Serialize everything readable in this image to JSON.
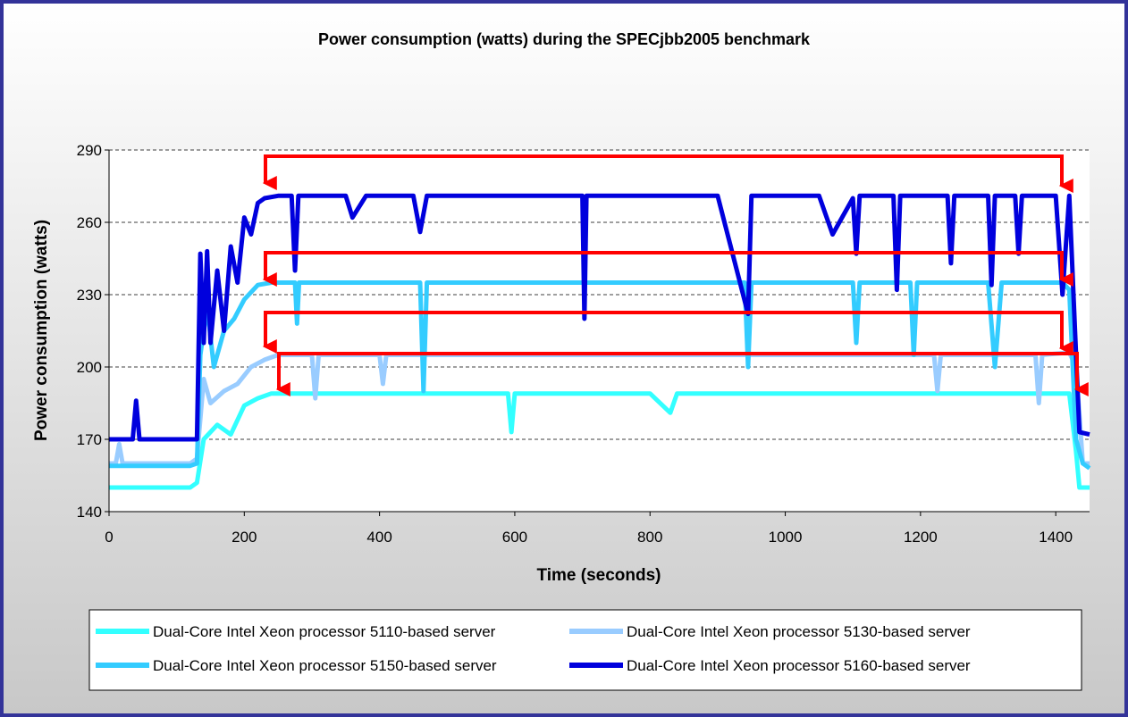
{
  "chart_data": {
    "type": "line",
    "title": "Power consumption (watts) during the SPECjbb2005 benchmark",
    "xlabel": "Time (seconds)",
    "ylabel": "Power consumption (watts)",
    "xlim": [
      0,
      1450
    ],
    "xticks": [
      0,
      200,
      400,
      600,
      800,
      1000,
      1200,
      1400
    ],
    "ylim": [
      140,
      290
    ],
    "yticks": [
      140,
      170,
      200,
      230,
      260,
      290
    ],
    "grid": true,
    "legend": "bottom",
    "series": [
      {
        "name": "Dual-Core Intel Xeon processor 5110-based server",
        "color": "#33ffff",
        "x": [
          0,
          120,
          130,
          140,
          160,
          180,
          200,
          220,
          240,
          300,
          590,
          595,
          600,
          800,
          830,
          840,
          1420,
          1430,
          1435,
          1450
        ],
        "values": [
          150,
          150,
          152,
          170,
          176,
          172,
          184,
          187,
          189,
          189,
          189,
          173,
          189,
          189,
          181,
          189,
          189,
          165,
          150,
          150
        ]
      },
      {
        "name": "Dual-Core Intel Xeon processor 5130-based server",
        "color": "#99ccff",
        "x": [
          0,
          10,
          15,
          20,
          120,
          130,
          140,
          150,
          170,
          190,
          210,
          230,
          250,
          300,
          305,
          310,
          400,
          405,
          410,
          700,
          1000,
          1220,
          1225,
          1230,
          1370,
          1375,
          1380,
          1420,
          1430,
          1440,
          1450
        ],
        "values": [
          160,
          160,
          168,
          160,
          160,
          162,
          195,
          185,
          190,
          193,
          200,
          203,
          205,
          205,
          187,
          205,
          205,
          193,
          205,
          205,
          205,
          205,
          190,
          205,
          205,
          185,
          205,
          206,
          200,
          160,
          160
        ]
      },
      {
        "name": "Dual-Core Intel Xeon processor 5150-based server",
        "color": "#33ccff",
        "x": [
          0,
          120,
          130,
          135,
          145,
          155,
          170,
          185,
          200,
          220,
          240,
          275,
          278,
          281,
          460,
          465,
          470,
          700,
          940,
          945,
          950,
          1100,
          1105,
          1110,
          1185,
          1190,
          1195,
          1300,
          1310,
          1320,
          1410,
          1420,
          1430,
          1440,
          1450
        ],
        "values": [
          159,
          159,
          160,
          205,
          225,
          200,
          215,
          220,
          228,
          234,
          235,
          235,
          218,
          235,
          235,
          190,
          235,
          235,
          235,
          200,
          235,
          235,
          210,
          235,
          235,
          205,
          235,
          235,
          200,
          235,
          235,
          232,
          170,
          160,
          158
        ]
      },
      {
        "name": "Dual-Core Intel Xeon processor 5160-based server",
        "color": "#0000dd",
        "x": [
          0,
          35,
          40,
          45,
          120,
          130,
          135,
          140,
          145,
          150,
          160,
          170,
          180,
          190,
          200,
          210,
          220,
          230,
          250,
          270,
          275,
          280,
          350,
          360,
          380,
          450,
          460,
          470,
          700,
          703,
          706,
          900,
          945,
          950,
          1050,
          1070,
          1100,
          1105,
          1110,
          1160,
          1165,
          1170,
          1240,
          1245,
          1250,
          1300,
          1305,
          1310,
          1340,
          1345,
          1350,
          1400,
          1410,
          1420,
          1430,
          1435,
          1450
        ],
        "values": [
          170,
          170,
          186,
          170,
          170,
          170,
          247,
          210,
          248,
          210,
          240,
          215,
          250,
          235,
          262,
          255,
          268,
          270,
          271,
          271,
          240,
          271,
          271,
          262,
          271,
          271,
          256,
          271,
          271,
          220,
          271,
          271,
          222,
          271,
          271,
          255,
          270,
          247,
          271,
          271,
          232,
          271,
          271,
          243,
          271,
          271,
          234,
          271,
          271,
          247,
          271,
          271,
          230,
          271,
          205,
          173,
          172
        ]
      }
    ]
  }
}
